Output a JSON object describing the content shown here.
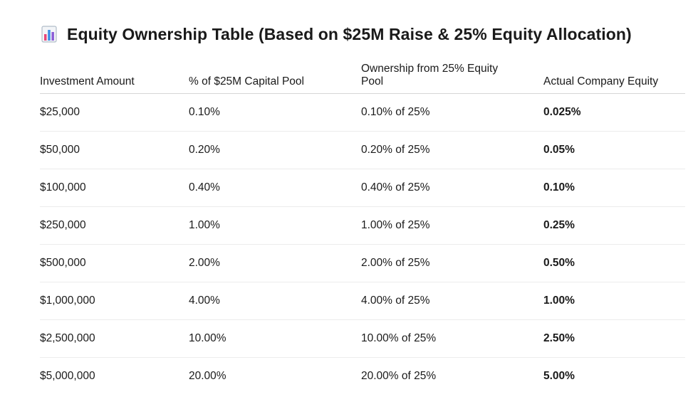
{
  "title": "Equity Ownership Table (Based on $25M Raise & 25% Equity Allocation)",
  "title_icon": "bar-chart-icon",
  "colors": {
    "icon_bar_pink": "#e8457a",
    "icon_bar_blue": "#3a8ee6",
    "icon_bar_purple": "#8a5cd6",
    "icon_frame": "#b0bcc8"
  },
  "table": {
    "headers": [
      "Investment Amount",
      "% of $25M Capital Pool",
      "Ownership from 25% Equity Pool",
      "Actual Company Equity"
    ],
    "rows": [
      [
        "$25,000",
        "0.10%",
        "0.10% of 25%",
        "0.025%"
      ],
      [
        "$50,000",
        "0.20%",
        "0.20% of 25%",
        "0.05%"
      ],
      [
        "$100,000",
        "0.40%",
        "0.40% of 25%",
        "0.10%"
      ],
      [
        "$250,000",
        "1.00%",
        "1.00% of 25%",
        "0.25%"
      ],
      [
        "$500,000",
        "2.00%",
        "2.00% of 25%",
        "0.50%"
      ],
      [
        "$1,000,000",
        "4.00%",
        "4.00% of 25%",
        "1.00%"
      ],
      [
        "$2,500,000",
        "10.00%",
        "10.00% of 25%",
        "2.50%"
      ],
      [
        "$5,000,000",
        "20.00%",
        "20.00% of 25%",
        "5.00%"
      ]
    ]
  }
}
